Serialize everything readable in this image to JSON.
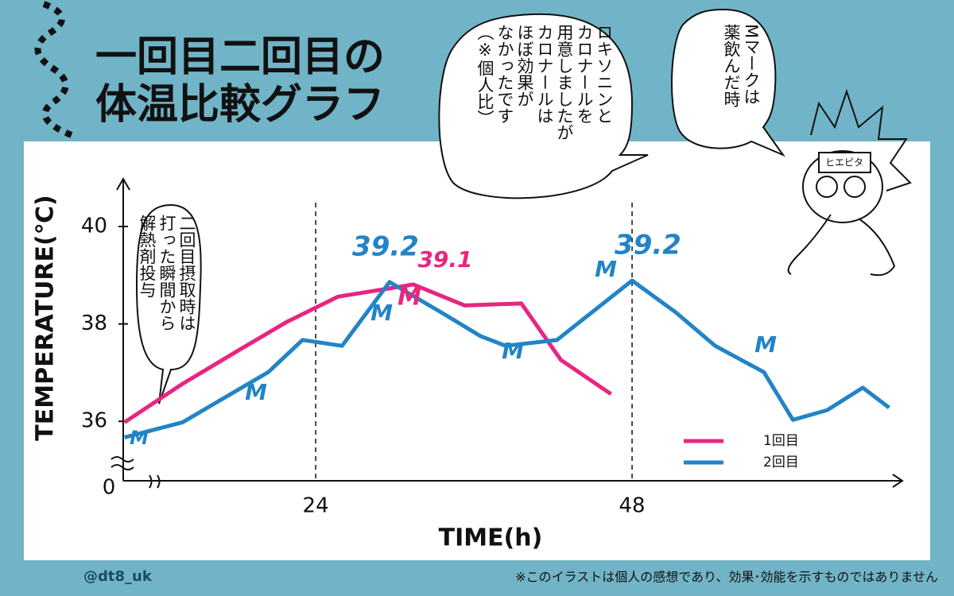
{
  "title_lines": [
    "一回目二回目の",
    "体温比較グラフ"
  ],
  "chart_data": {
    "type": "line",
    "x_label": "TIME(h)",
    "y_label": "TEMPERATURE(℃)",
    "origin_label": "0",
    "xlim": [
      9.4,
      68.5
    ],
    "xticks": [
      24,
      48
    ],
    "ylim": [
      34.6,
      40.8
    ],
    "yticks": [
      36,
      38,
      40
    ],
    "legend": "bottom-right",
    "series": [
      {
        "name": "1回目",
        "color": "#e8267f",
        "x": [
          9.5,
          13.9,
          18.1,
          21.8,
          25.7,
          29.6,
          31.4,
          35.3,
          39.6,
          42.6,
          46.4
        ],
        "values": [
          35.98,
          36.77,
          37.45,
          38.04,
          38.56,
          38.73,
          38.81,
          38.38,
          38.42,
          37.26,
          36.56
        ]
      },
      {
        "name": "2回目",
        "color": "#2284c6",
        "x": [
          9.5,
          13.9,
          20.4,
          23.0,
          26.0,
          29.6,
          33.5,
          36.5,
          38.4,
          42.3,
          48.0,
          51.3,
          54.3,
          58.0,
          60.2,
          62.8,
          65.5,
          67.5
        ],
        "values": [
          35.67,
          35.98,
          37.01,
          37.67,
          37.55,
          38.86,
          38.24,
          37.75,
          37.55,
          37.67,
          38.89,
          38.24,
          37.55,
          37.01,
          36.03,
          36.23,
          36.69,
          36.28
        ]
      }
    ],
    "annotations": [
      {
        "text": "39.2",
        "color": "#2284c6"
      },
      {
        "text": "39.1",
        "color": "#e8267f"
      },
      {
        "text": "39.2",
        "color": "#2284c6"
      },
      {
        "text": "M",
        "color": "#2284c6"
      },
      {
        "text": "M",
        "color": "#2284c6"
      },
      {
        "text": "M",
        "color": "#2284c6"
      },
      {
        "text": "M",
        "color": "#e8267f"
      },
      {
        "text": "M",
        "color": "#2284c6"
      },
      {
        "text": "M",
        "color": "#2284c6"
      },
      {
        "text": "M",
        "color": "#2284c6"
      }
    ]
  },
  "bubbles": [
    {
      "lines": [
        "二回目摂取時は",
        "打った瞬間から",
        "解熱剤投与"
      ]
    },
    {
      "lines": [
        "ロキソニンと",
        "カロナールを",
        "用意しましたが",
        "カロナールは",
        "ほぼ効果が",
        "なかったです",
        "（※個人比）"
      ]
    },
    {
      "lines": [
        "Mマークは",
        "薬飲んだ時"
      ]
    }
  ],
  "character_label": "ヒエピタ",
  "footer": {
    "handle": "@dt8_uk",
    "disclaimer": "※このイラストは個人の感想であり、効果･効能を示すものではありません"
  }
}
